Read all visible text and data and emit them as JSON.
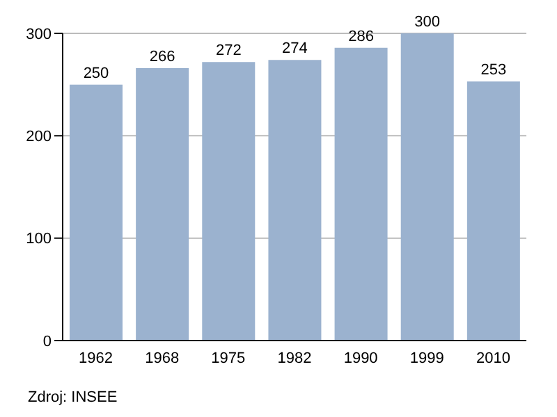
{
  "chart_data": {
    "type": "bar",
    "categories": [
      "1962",
      "1968",
      "1975",
      "1982",
      "1990",
      "1999",
      "2010"
    ],
    "values": [
      250,
      266,
      272,
      274,
      286,
      300,
      253
    ],
    "color": "#9bb2cf",
    "ylim": [
      0,
      300
    ],
    "yticks": [
      0,
      100,
      200,
      300
    ],
    "grid": "y",
    "data_labels": true,
    "annotations": [
      "Zdroj: INSEE"
    ]
  }
}
